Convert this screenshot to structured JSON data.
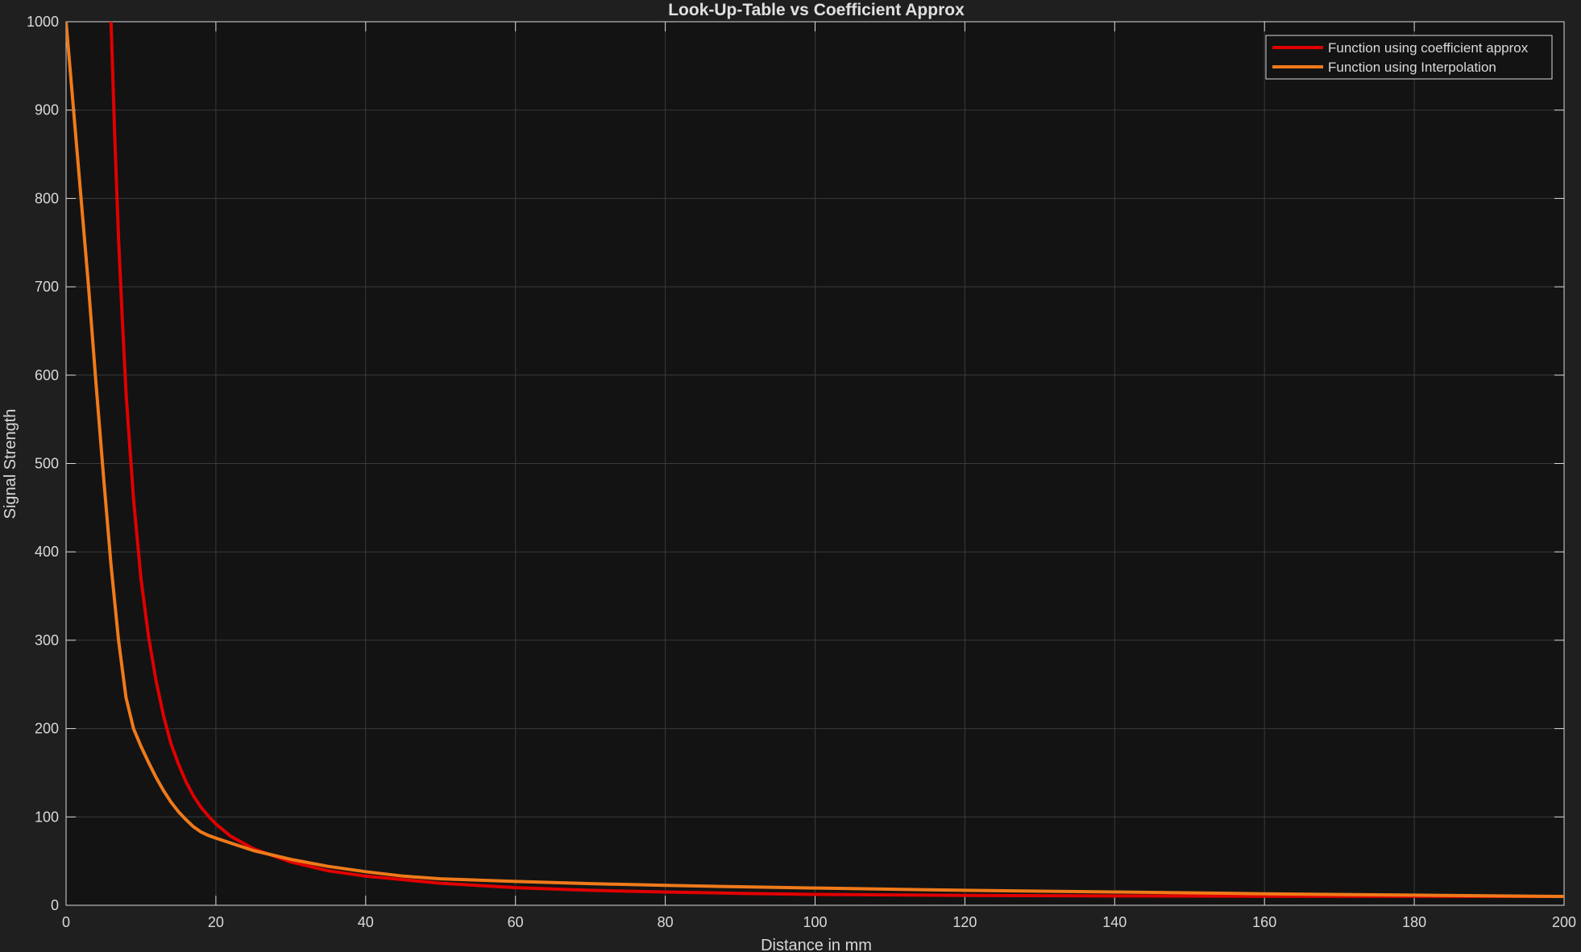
{
  "colors": {
    "figure_bg": "#1f1f1f",
    "axes_bg": "#131313",
    "grid": "#3a3a3a",
    "axis_line": "#d9d9d9",
    "text": "#d9d9d9",
    "title": "#e0e0e0"
  },
  "chart_data": {
    "type": "line",
    "title": "Look-Up-Table vs Coefficient Approx",
    "xlabel": "Distance in mm",
    "ylabel": "Signal Strength",
    "xlim": [
      0,
      200
    ],
    "ylim": [
      0,
      1000
    ],
    "xticks": [
      0,
      20,
      40,
      60,
      80,
      100,
      120,
      140,
      160,
      180,
      200
    ],
    "yticks": [
      0,
      100,
      200,
      300,
      400,
      500,
      600,
      700,
      800,
      900,
      1000
    ],
    "grid": true,
    "legend_position": "top-right",
    "series": [
      {
        "name": "Function using coefficient approx",
        "color": "#e00000",
        "x": [
          6,
          6.5,
          7,
          7.5,
          8,
          8.5,
          9,
          9.5,
          10,
          11,
          12,
          13,
          14,
          15,
          16,
          17,
          18,
          19,
          20,
          22,
          25,
          30,
          35,
          40,
          50,
          60,
          70,
          80,
          90,
          100,
          120,
          140,
          160,
          180,
          200
        ],
        "y": [
          1000,
          870,
          755,
          665,
          580,
          520,
          460,
          415,
          370,
          305,
          255,
          215,
          183,
          160,
          140,
          124,
          111,
          101,
          92,
          78,
          64,
          49,
          39,
          33,
          25,
          20,
          17,
          15,
          13.5,
          12.3,
          11.2,
          10.6,
          10.3,
          10.1,
          10
        ]
      },
      {
        "name": "Function using Interpolation",
        "color": "#f07a1a",
        "x": [
          0,
          1,
          2,
          3,
          4,
          5,
          6,
          7,
          8,
          9,
          10,
          11,
          12,
          13,
          14,
          15,
          16,
          17,
          18,
          19,
          20,
          25,
          30,
          35,
          40,
          45,
          50,
          60,
          70,
          80,
          90,
          100,
          120,
          140,
          160,
          180,
          200
        ],
        "y": [
          1000,
          900,
          800,
          700,
          590,
          485,
          385,
          300,
          235,
          200,
          180,
          162,
          145,
          130,
          117,
          106,
          97,
          89,
          83,
          79,
          76,
          62,
          52,
          44,
          38,
          33,
          30,
          27,
          24.5,
          22.5,
          21,
          19.5,
          17,
          15,
          13,
          11.5,
          10
        ]
      }
    ]
  }
}
